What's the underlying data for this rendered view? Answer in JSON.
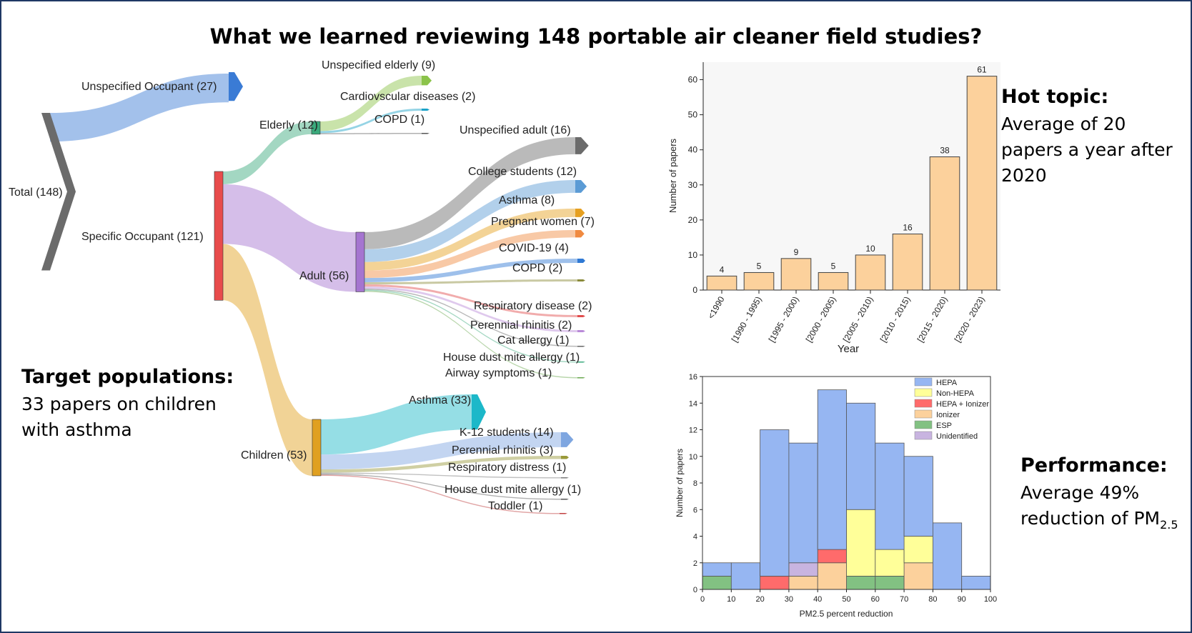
{
  "title": "What we learned reviewing 148 portable air cleaner field studies?",
  "callouts": {
    "hot_topic": {
      "heading": "Hot topic:",
      "body": "Average of 20 papers a year after 2020"
    },
    "target": {
      "heading": "Target populations:",
      "body": "33 papers on children with asthma"
    },
    "performance": {
      "heading": "Performance:",
      "body_pre": "Average 49% reduction of PM",
      "body_sub": "2.5"
    }
  },
  "chart_data": [
    {
      "type": "sankey",
      "nodes": [
        {
          "id": "total",
          "label": "Total (148)",
          "value": 148,
          "color": "#6b6b6b"
        },
        {
          "id": "unspec_occ",
          "label": "Unspecified Occupant (27)",
          "value": 27,
          "color": "#3a7bd5"
        },
        {
          "id": "specific",
          "label": "Specific Occupant (121)",
          "value": 121,
          "color": "#e84c4c"
        },
        {
          "id": "elderly",
          "label": "Elderly (12)",
          "value": 12,
          "color": "#3aaa7c"
        },
        {
          "id": "adult",
          "label": "Adult (56)",
          "value": 56,
          "color": "#a575d0"
        },
        {
          "id": "children",
          "label": "Children (53)",
          "value": 53,
          "color": "#e0a020"
        },
        {
          "id": "e_unspec",
          "label": "Unspecified elderly (9)",
          "value": 9,
          "color": "#8bc34a"
        },
        {
          "id": "e_cardio",
          "label": "Cardiovscular diseases (2)",
          "value": 2,
          "color": "#1ca3c9"
        },
        {
          "id": "e_copd",
          "label": "COPD (1)",
          "value": 1,
          "color": "#555555"
        },
        {
          "id": "a_unspec",
          "label": "Unspecified adult (16)",
          "value": 16,
          "color": "#6b6b6b"
        },
        {
          "id": "a_college",
          "label": "College students (12)",
          "value": 12,
          "color": "#5b9bd5"
        },
        {
          "id": "a_asthma",
          "label": "Asthma (8)",
          "value": 8,
          "color": "#e6a020"
        },
        {
          "id": "a_pregnant",
          "label": "Pregnant women (7)",
          "value": 7,
          "color": "#f08a40"
        },
        {
          "id": "a_covid",
          "label": "COVID-19 (4)",
          "value": 4,
          "color": "#2f79d4"
        },
        {
          "id": "a_copd",
          "label": "COPD (2)",
          "value": 2,
          "color": "#8a8a3a"
        },
        {
          "id": "a_resp",
          "label": "Respiratory disease (2)",
          "value": 2,
          "color": "#e04c4c"
        },
        {
          "id": "a_perennial",
          "label": "Perennial rhinitis (2)",
          "value": 2,
          "color": "#b98ad8"
        },
        {
          "id": "a_cat",
          "label": "Cat allergy (1)",
          "value": 1,
          "color": "#666666"
        },
        {
          "id": "a_hdm",
          "label": "House dust mite allergy (1)",
          "value": 1,
          "color": "#3aaa7c"
        },
        {
          "id": "a_airway",
          "label": "Airway symptoms (1)",
          "value": 1,
          "color": "#6aa84f"
        },
        {
          "id": "c_asthma",
          "label": "Asthma (33)",
          "value": 33,
          "color": "#1cb8c9"
        },
        {
          "id": "c_k12",
          "label": "K-12 students (14)",
          "value": 14,
          "color": "#7ea6e0"
        },
        {
          "id": "c_perennial",
          "label": "Perennial rhinitis (3)",
          "value": 3,
          "color": "#9a9a3a"
        },
        {
          "id": "c_respdist",
          "label": "Respiratory distress (1)",
          "value": 1,
          "color": "#7a7a7a"
        },
        {
          "id": "c_hdm",
          "label": "House dust mite allergy (1)",
          "value": 1,
          "color": "#555555"
        },
        {
          "id": "c_toddler",
          "label": "Toddler (1)",
          "value": 1,
          "color": "#c04040"
        }
      ],
      "links": [
        {
          "source": "total",
          "target": "unspec_occ",
          "value": 27
        },
        {
          "source": "total",
          "target": "specific",
          "value": 121
        },
        {
          "source": "specific",
          "target": "elderly",
          "value": 12
        },
        {
          "source": "specific",
          "target": "adult",
          "value": 56
        },
        {
          "source": "specific",
          "target": "children",
          "value": 53
        },
        {
          "source": "elderly",
          "target": "e_unspec",
          "value": 9
        },
        {
          "source": "elderly",
          "target": "e_cardio",
          "value": 2
        },
        {
          "source": "elderly",
          "target": "e_copd",
          "value": 1
        },
        {
          "source": "adult",
          "target": "a_unspec",
          "value": 16
        },
        {
          "source": "adult",
          "target": "a_college",
          "value": 12
        },
        {
          "source": "adult",
          "target": "a_asthma",
          "value": 8
        },
        {
          "source": "adult",
          "target": "a_pregnant",
          "value": 7
        },
        {
          "source": "adult",
          "target": "a_covid",
          "value": 4
        },
        {
          "source": "adult",
          "target": "a_copd",
          "value": 2
        },
        {
          "source": "adult",
          "target": "a_resp",
          "value": 2
        },
        {
          "source": "adult",
          "target": "a_perennial",
          "value": 2
        },
        {
          "source": "adult",
          "target": "a_cat",
          "value": 1
        },
        {
          "source": "adult",
          "target": "a_hdm",
          "value": 1
        },
        {
          "source": "adult",
          "target": "a_airway",
          "value": 1
        },
        {
          "source": "children",
          "target": "c_asthma",
          "value": 33
        },
        {
          "source": "children",
          "target": "c_k12",
          "value": 14
        },
        {
          "source": "children",
          "target": "c_perennial",
          "value": 3
        },
        {
          "source": "children",
          "target": "c_respdist",
          "value": 1
        },
        {
          "source": "children",
          "target": "c_hdm",
          "value": 1
        },
        {
          "source": "children",
          "target": "c_toddler",
          "value": 1
        }
      ]
    },
    {
      "type": "bar",
      "categories": [
        "<1990",
        "[1990 - 1995)",
        "[1995 - 2000)",
        "[2000 - 2005)",
        "[2005 - 2010)",
        "[2010 - 2015)",
        "[2015 - 2020)",
        "[2020 - 2023)"
      ],
      "values": [
        4,
        5,
        9,
        5,
        10,
        16,
        38,
        61
      ],
      "xlabel": "Year",
      "ylabel": "Number of papers",
      "ylim": [
        0,
        65
      ],
      "yticks": [
        0,
        10,
        20,
        30,
        40,
        50,
        60
      ],
      "color": "#fcd19c",
      "grid": false
    },
    {
      "type": "bar",
      "stacked": true,
      "histogram": true,
      "bin_edges": [
        0,
        10,
        20,
        30,
        40,
        50,
        60,
        70,
        80,
        90,
        100
      ],
      "series": [
        {
          "name": "ESP",
          "color": "#82c182",
          "values": [
            1,
            0,
            0,
            0,
            0,
            1,
            1,
            0,
            0,
            0
          ]
        },
        {
          "name": "Ionizer",
          "color": "#fcd19c",
          "values": [
            0,
            0,
            0,
            1,
            2,
            0,
            0,
            2,
            0,
            0
          ]
        },
        {
          "name": "Unidentified",
          "color": "#c8b4e0",
          "values": [
            0,
            0,
            0,
            1,
            0,
            0,
            0,
            0,
            0,
            0
          ]
        },
        {
          "name": "HEPA + Ionizer",
          "color": "#ff6b6b",
          "values": [
            0,
            0,
            1,
            0,
            1,
            0,
            0,
            0,
            0,
            0
          ]
        },
        {
          "name": "Non-HEPA",
          "color": "#ffff99",
          "values": [
            0,
            0,
            0,
            0,
            0,
            5,
            2,
            2,
            0,
            0
          ]
        },
        {
          "name": "HEPA",
          "color": "#96b6f2",
          "values": [
            1,
            2,
            11,
            9,
            12,
            8,
            8,
            6,
            5,
            1
          ]
        }
      ],
      "legend_order": [
        "HEPA",
        "Non-HEPA",
        "HEPA + Ionizer",
        "Ionizer",
        "ESP",
        "Unidentified"
      ],
      "legend_position": "top-right",
      "xlabel": "PM2.5 percent reduction",
      "ylabel": "Number of papers",
      "xlim": [
        0,
        100
      ],
      "ylim": [
        0,
        16
      ],
      "xticks": [
        0,
        10,
        20,
        30,
        40,
        50,
        60,
        70,
        80,
        90,
        100
      ],
      "yticks": [
        0,
        2,
        4,
        6,
        8,
        10,
        12,
        14,
        16
      ],
      "grid": false
    }
  ]
}
